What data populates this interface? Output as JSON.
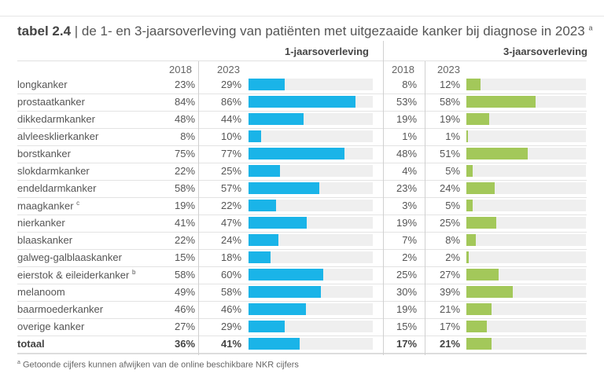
{
  "title": {
    "prefix": "tabel 2.4",
    "text": " | de 1- en 3-jaarsoverleving van patiënten met uitgezaaide kanker bij diagnose in 2023",
    "note": "a"
  },
  "footnote": {
    "mark": "a",
    "text": " Getoonde cijfers kunnen afwijken van de online beschikbare NKR cijfers"
  },
  "chart_data": {
    "type": "table",
    "groups": [
      {
        "name": "1-jaarsoverleving",
        "years": [
          "2018",
          "2023"
        ],
        "bar_color": "#1ab4e8"
      },
      {
        "name": "3-jaarsoverleving",
        "years": [
          "2018",
          "2023"
        ],
        "bar_color": "#a3c85a"
      }
    ],
    "bar_max": 100,
    "rows": [
      {
        "label": "longkanker",
        "sup": "",
        "y1_2018": 23,
        "y1_2023": 29,
        "y3_2018": 8,
        "y3_2023": 12
      },
      {
        "label": "prostaatkanker",
        "sup": "",
        "y1_2018": 84,
        "y1_2023": 86,
        "y3_2018": 53,
        "y3_2023": 58
      },
      {
        "label": "dikkedarmkanker",
        "sup": "",
        "y1_2018": 48,
        "y1_2023": 44,
        "y3_2018": 19,
        "y3_2023": 19
      },
      {
        "label": "alvleesklierkanker",
        "sup": "",
        "y1_2018": 8,
        "y1_2023": 10,
        "y3_2018": 1,
        "y3_2023": 1
      },
      {
        "label": "borstkanker",
        "sup": "",
        "y1_2018": 75,
        "y1_2023": 77,
        "y3_2018": 48,
        "y3_2023": 51
      },
      {
        "label": "slokdarmkanker",
        "sup": "",
        "y1_2018": 22,
        "y1_2023": 25,
        "y3_2018": 4,
        "y3_2023": 5
      },
      {
        "label": "endeldarmkanker",
        "sup": "",
        "y1_2018": 58,
        "y1_2023": 57,
        "y3_2018": 23,
        "y3_2023": 24
      },
      {
        "label": "maagkanker",
        "sup": "c",
        "y1_2018": 19,
        "y1_2023": 22,
        "y3_2018": 3,
        "y3_2023": 5
      },
      {
        "label": "nierkanker",
        "sup": "",
        "y1_2018": 41,
        "y1_2023": 47,
        "y3_2018": 19,
        "y3_2023": 25
      },
      {
        "label": "blaaskanker",
        "sup": "",
        "y1_2018": 22,
        "y1_2023": 24,
        "y3_2018": 7,
        "y3_2023": 8
      },
      {
        "label": "galweg-galblaaskanker",
        "sup": "",
        "y1_2018": 15,
        "y1_2023": 18,
        "y3_2018": 2,
        "y3_2023": 2
      },
      {
        "label": "eierstok & eileiderkanker",
        "sup": "b",
        "y1_2018": 58,
        "y1_2023": 60,
        "y3_2018": 25,
        "y3_2023": 27
      },
      {
        "label": "melanoom",
        "sup": "",
        "y1_2018": 49,
        "y1_2023": 58,
        "y3_2018": 30,
        "y3_2023": 39
      },
      {
        "label": "baarmoederkanker",
        "sup": "",
        "y1_2018": 46,
        "y1_2023": 46,
        "y3_2018": 19,
        "y3_2023": 21
      },
      {
        "label": "overige kanker",
        "sup": "",
        "y1_2018": 27,
        "y1_2023": 29,
        "y3_2018": 15,
        "y3_2023": 17
      },
      {
        "label": "totaal",
        "sup": "",
        "y1_2018": 36,
        "y1_2023": 41,
        "y3_2018": 17,
        "y3_2023": 21,
        "total": true
      }
    ]
  }
}
